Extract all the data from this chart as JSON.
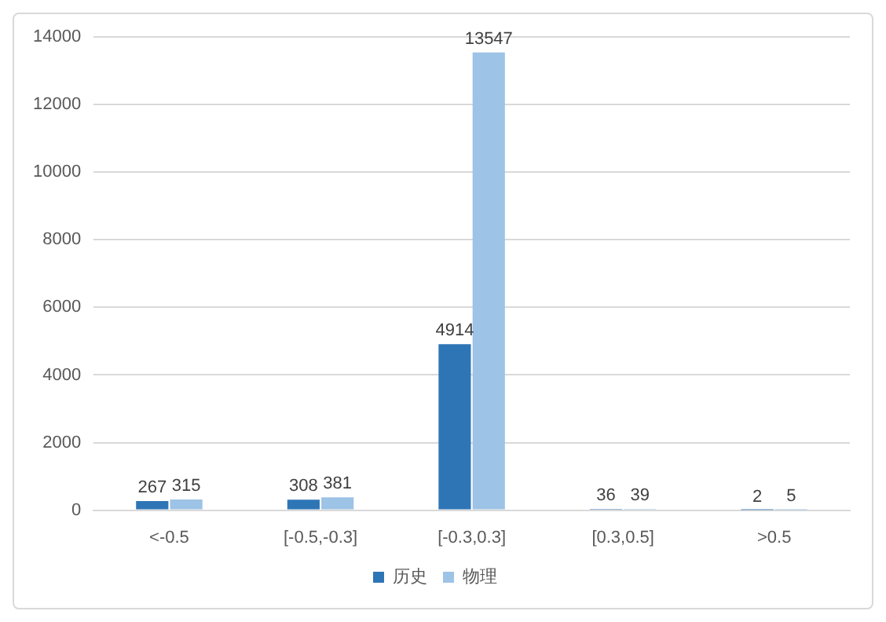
{
  "chart_data": {
    "type": "bar",
    "categories": [
      "<-0.5",
      "[-0.5,-0.3]",
      "[-0.3,0.3]",
      "[0.3,0.5]",
      ">0.5"
    ],
    "series": [
      {
        "name": "历史",
        "color": "#2e75b6",
        "values": [
          267,
          308,
          4914,
          36,
          2
        ]
      },
      {
        "name": "物理",
        "color": "#9dc3e6",
        "values": [
          315,
          381,
          13547,
          39,
          5
        ]
      }
    ],
    "ylim": [
      0,
      14000
    ],
    "yticks": [
      0,
      2000,
      4000,
      6000,
      8000,
      10000,
      12000,
      14000
    ],
    "grid": "y",
    "legend": "bottom",
    "data_labels": true
  }
}
